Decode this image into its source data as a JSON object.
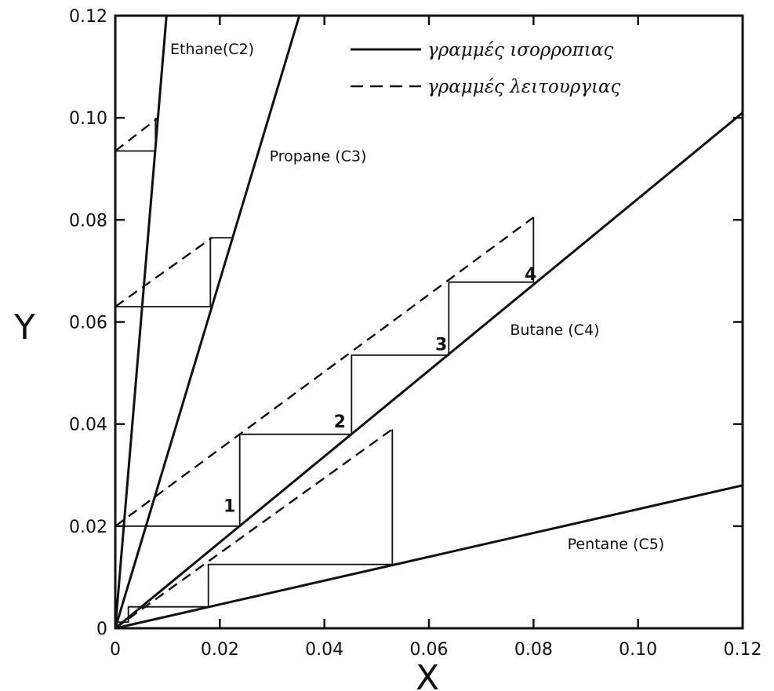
{
  "chart_data": {
    "type": "line",
    "xlabel": "X",
    "ylabel": "Y",
    "xlim": [
      0,
      0.12
    ],
    "ylim": [
      0,
      0.12
    ],
    "x_ticks": [
      "0",
      "0.02",
      "0.04",
      "0.06",
      "0.08",
      "0.10",
      "0.12"
    ],
    "y_ticks": [
      "0",
      "0.02",
      "0.04",
      "0.06",
      "0.08",
      "0.10",
      "0.12"
    ],
    "grid": false,
    "legend": {
      "placement": "top-right",
      "entries": [
        {
          "label": "γραμμές ισορροπιας",
          "style": "solid"
        },
        {
          "label": "γραμμές λειτουργιας",
          "style": "dashed"
        }
      ]
    },
    "equilibrium_lines": [
      {
        "name": "Ethane(C2)",
        "label_pos": [
          0.0105,
          0.1125
        ],
        "points": [
          [
            0,
            0
          ],
          [
            0.0098,
            0.12
          ]
        ]
      },
      {
        "name": "Propane (C3)",
        "label_pos": [
          0.0295,
          0.0915
        ],
        "points": [
          [
            0,
            0
          ],
          [
            0.0352,
            0.12
          ]
        ]
      },
      {
        "name": "Butane (C4)",
        "label_pos": [
          0.0755,
          0.0575
        ],
        "points": [
          [
            0,
            0
          ],
          [
            0.12,
            0.101
          ]
        ]
      },
      {
        "name": "Pentane (C5)",
        "label_pos": [
          0.0865,
          0.0155
        ],
        "points": [
          [
            0,
            0
          ],
          [
            0.12,
            0.028
          ]
        ]
      }
    ],
    "operating_lines": [
      {
        "points": [
          [
            0,
            0.0935
          ],
          [
            0.0082,
            0.1
          ]
        ]
      },
      {
        "points": [
          [
            0,
            0.063
          ],
          [
            0.0185,
            0.0765
          ]
        ]
      },
      {
        "points": [
          [
            0,
            0.02
          ],
          [
            0.08,
            0.0805
          ]
        ]
      },
      {
        "points": [
          [
            0,
            0
          ],
          [
            0.053,
            0.039
          ]
        ]
      }
    ],
    "step_lines": [
      {
        "points": [
          [
            0,
            0.0935
          ],
          [
            0.0077,
            0.0935
          ],
          [
            0.0077,
            0.1
          ]
        ]
      },
      {
        "points": [
          [
            0,
            0.063
          ],
          [
            0.0182,
            0.063
          ],
          [
            0.0182,
            0.0765
          ],
          [
            0.0222,
            0.0765
          ]
        ]
      },
      {
        "points": [
          [
            0,
            0.02
          ],
          [
            0.0238,
            0.02
          ],
          [
            0.0238,
            0.038
          ],
          [
            0.0452,
            0.038
          ],
          [
            0.0452,
            0.0535
          ],
          [
            0.0638,
            0.0535
          ],
          [
            0.0638,
            0.0678
          ],
          [
            0.08,
            0.0678
          ],
          [
            0.08,
            0.0805
          ]
        ]
      },
      {
        "points": [
          [
            0,
            0.0012
          ],
          [
            0.0025,
            0.0012
          ],
          [
            0.0025,
            0.0042
          ],
          [
            0.0178,
            0.0042
          ],
          [
            0.0178,
            0.0125
          ],
          [
            0.053,
            0.0125
          ],
          [
            0.053,
            0.039
          ]
        ]
      }
    ],
    "stage_labels": [
      {
        "text": "1",
        "pos": [
          0.0207,
          0.0228
        ]
      },
      {
        "text": "2",
        "pos": [
          0.0418,
          0.0393
        ]
      },
      {
        "text": "3",
        "pos": [
          0.0612,
          0.0545
        ]
      },
      {
        "text": "4",
        "pos": [
          0.0783,
          0.0682
        ]
      }
    ]
  }
}
